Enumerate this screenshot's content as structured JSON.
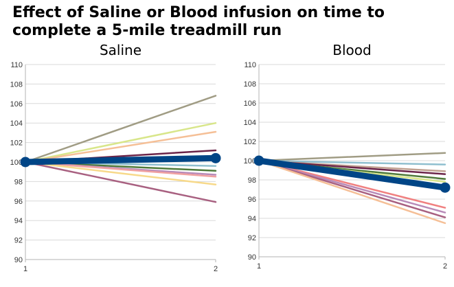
{
  "title": {
    "line1": "Effect of Saline or Blood infusion on time to",
    "line2": "complete a 5-mile treadmill run"
  },
  "chart_data": [
    {
      "type": "line",
      "title": "Saline",
      "xlabel": "",
      "ylabel": "",
      "x": [
        1,
        2
      ],
      "ylim": [
        90,
        110
      ],
      "yticks": [
        90,
        92,
        94,
        96,
        98,
        100,
        102,
        104,
        106,
        108,
        110
      ],
      "grid": true,
      "series": [
        {
          "values": [
            100,
            106.8
          ],
          "color": "#a09c84"
        },
        {
          "values": [
            100,
            104.0
          ],
          "color": "#d8e68a"
        },
        {
          "values": [
            100,
            103.1
          ],
          "color": "#f5bf96"
        },
        {
          "values": [
            100,
            101.2
          ],
          "color": "#6b2448"
        },
        {
          "values": [
            100,
            99.6
          ],
          "color": "#8fbfcf"
        },
        {
          "values": [
            100,
            99.1
          ],
          "color": "#4f7a3a"
        },
        {
          "values": [
            100,
            98.7
          ],
          "color": "#b88ab8"
        },
        {
          "values": [
            100,
            98.5
          ],
          "color": "#f0a0a0"
        },
        {
          "values": [
            100,
            97.7
          ],
          "color": "#f7d98a"
        },
        {
          "values": [
            100,
            95.9
          ],
          "color": "#a86080"
        },
        {
          "values": [
            100,
            100.4
          ],
          "color": "#004586",
          "mean": true
        }
      ]
    },
    {
      "type": "line",
      "title": "Blood",
      "xlabel": "",
      "ylabel": "",
      "x": [
        1,
        2
      ],
      "ylim": [
        90,
        110
      ],
      "yticks": [
        90,
        92,
        94,
        96,
        98,
        100,
        102,
        104,
        106,
        108,
        110
      ],
      "grid": true,
      "series": [
        {
          "values": [
            100,
            100.8
          ],
          "color": "#a09c84"
        },
        {
          "values": [
            100,
            99.6
          ],
          "color": "#8fbfcf"
        },
        {
          "values": [
            100,
            98.9
          ],
          "color": "#c0a090"
        },
        {
          "values": [
            100,
            98.6
          ],
          "color": "#6b2448"
        },
        {
          "values": [
            100,
            98.1
          ],
          "color": "#4f7a3a"
        },
        {
          "values": [
            100,
            97.8
          ],
          "color": "#d8e68a"
        },
        {
          "values": [
            100,
            95.1
          ],
          "color": "#f08080"
        },
        {
          "values": [
            100,
            94.6
          ],
          "color": "#b88ab8"
        },
        {
          "values": [
            100,
            94.1
          ],
          "color": "#a86080"
        },
        {
          "values": [
            100,
            93.5
          ],
          "color": "#f5bf96"
        },
        {
          "values": [
            100,
            97.2
          ],
          "color": "#004586",
          "mean": true
        }
      ]
    }
  ]
}
